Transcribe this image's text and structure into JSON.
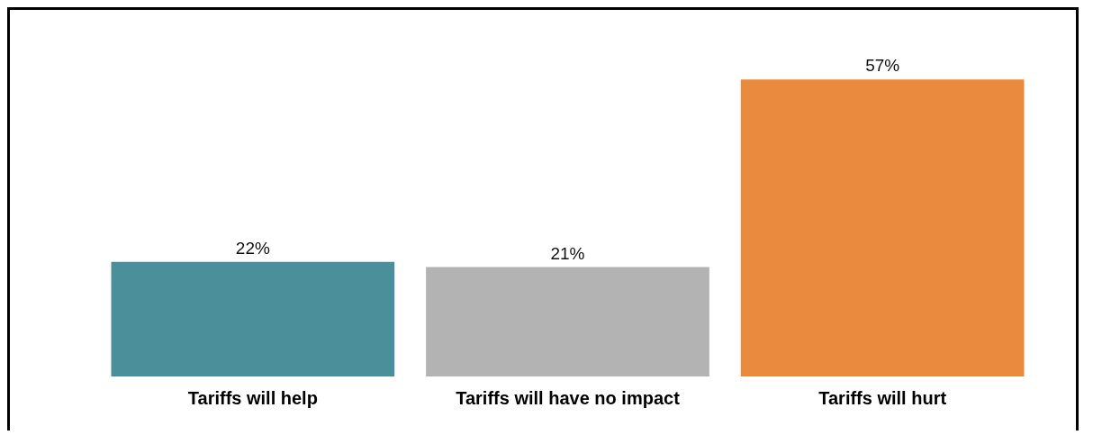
{
  "chart_data": {
    "type": "bar",
    "categories": [
      "Tariffs will help",
      "Tariffs will have no impact",
      "Tariffs will hurt"
    ],
    "values": [
      22,
      21,
      57
    ],
    "colors": [
      "#4b8f9b",
      "#b3b3b3",
      "#e98a3f"
    ],
    "value_labels": [
      "22%",
      "21%",
      "57%"
    ],
    "grid": false
  }
}
